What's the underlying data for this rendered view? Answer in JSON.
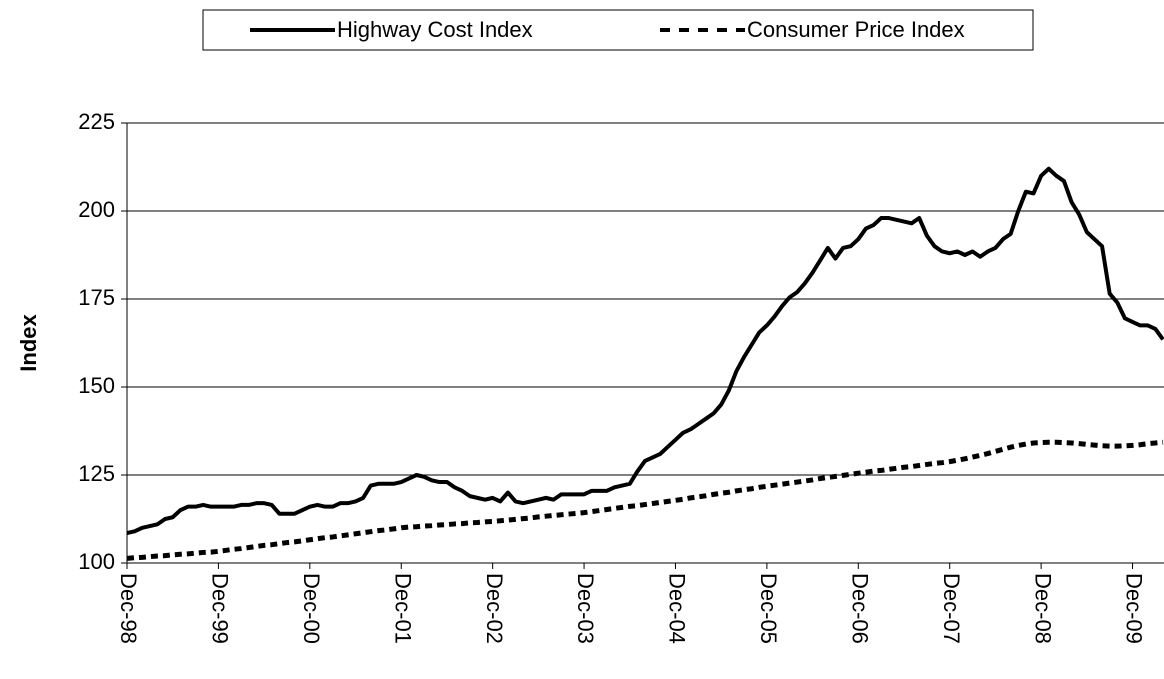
{
  "chart_data": {
    "type": "line",
    "y_label": "Index",
    "ylim": [
      100,
      225
    ],
    "yticks": [
      100,
      125,
      150,
      175,
      200,
      225
    ],
    "grid": true,
    "legend": "top",
    "categories": [
      "Dec-98",
      null,
      null,
      null,
      null,
      null,
      null,
      null,
      null,
      null,
      null,
      null,
      "Dec-99",
      null,
      null,
      null,
      null,
      null,
      null,
      null,
      null,
      null,
      null,
      null,
      "Dec-00",
      null,
      null,
      null,
      null,
      null,
      null,
      null,
      null,
      null,
      null,
      null,
      "Dec-01",
      null,
      null,
      null,
      null,
      null,
      null,
      null,
      null,
      null,
      null,
      null,
      "Dec-02",
      null,
      null,
      null,
      null,
      null,
      null,
      null,
      null,
      null,
      null,
      null,
      "Dec-03",
      null,
      null,
      null,
      null,
      null,
      null,
      null,
      null,
      null,
      null,
      null,
      "Dec-04",
      null,
      null,
      null,
      null,
      null,
      null,
      null,
      null,
      null,
      null,
      null,
      "Dec-05",
      null,
      null,
      null,
      null,
      null,
      null,
      null,
      null,
      null,
      null,
      null,
      "Dec-06",
      null,
      null,
      null,
      null,
      null,
      null,
      null,
      null,
      null,
      null,
      null,
      "Dec-07",
      null,
      null,
      null,
      null,
      null,
      null,
      null,
      null,
      null,
      null,
      null,
      "Dec-08",
      null,
      null,
      null,
      null,
      null,
      null,
      null,
      null,
      null,
      null,
      null,
      "Dec-09",
      null,
      null,
      null,
      null
    ],
    "series": [
      {
        "name": "Highway Cost Index",
        "color": "#000000",
        "dashed": false,
        "values": [
          108.5,
          109,
          110,
          110.5,
          111,
          112.5,
          113,
          115,
          116,
          116,
          116.5,
          116,
          116,
          116,
          116,
          116.5,
          116.5,
          117,
          117,
          116.5,
          114,
          114,
          114,
          115,
          116,
          116.5,
          116,
          116,
          117,
          117,
          117.5,
          118.5,
          122,
          122.5,
          122.5,
          122.5,
          123,
          124,
          125,
          124.5,
          123.5,
          123,
          123,
          121.5,
          120.5,
          119,
          118.5,
          118,
          118.5,
          117.5,
          120,
          117.5,
          117,
          117.5,
          118,
          118.5,
          118,
          119.5,
          119.5,
          119.5,
          119.5,
          120.5,
          120.5,
          120.5,
          121.5,
          122,
          122.5,
          126,
          129,
          130,
          131,
          133,
          135,
          137,
          138,
          139.5,
          141,
          142.5,
          145,
          149,
          154.5,
          158.5,
          162,
          165.5,
          167.5,
          170,
          173,
          175.5,
          177,
          179.5,
          182.5,
          186,
          189.5,
          186.5,
          189.5,
          190,
          192,
          195,
          196,
          198,
          198,
          197.5,
          197,
          196.5,
          198,
          193,
          190,
          188.5,
          188,
          188.5,
          187.5,
          188.5,
          187,
          188.5,
          189.5,
          192,
          193.5,
          200,
          205.5,
          205,
          210,
          212,
          210,
          208.5,
          202.5,
          199,
          194,
          192,
          190,
          176.5,
          174,
          169.5,
          168.5,
          167.5,
          167.5,
          166.5,
          163.5
        ]
      },
      {
        "name": "Consumer Price Index",
        "color": "#000000",
        "dashed": true,
        "values": [
          101.3,
          101.5,
          101.6,
          101.8,
          102.0,
          102.1,
          102.3,
          102.5,
          102.6,
          102.8,
          103.0,
          103.1,
          103.3,
          103.6,
          103.9,
          104.1,
          104.4,
          104.7,
          105.0,
          105.2,
          105.5,
          105.8,
          106.0,
          106.3,
          106.6,
          106.9,
          107.2,
          107.4,
          107.7,
          108.0,
          108.3,
          108.6,
          108.9,
          109.2,
          109.4,
          109.7,
          110.0,
          110.2,
          110.3,
          110.5,
          110.6,
          110.8,
          110.9,
          111.1,
          111.2,
          111.4,
          111.5,
          111.7,
          111.8,
          112.0,
          112.2,
          112.4,
          112.6,
          112.8,
          113.1,
          113.3,
          113.5,
          113.7,
          113.9,
          114.1,
          114.3,
          114.6,
          114.9,
          115.2,
          115.5,
          115.8,
          116.1,
          116.3,
          116.6,
          116.9,
          117.2,
          117.5,
          117.8,
          118.1,
          118.5,
          118.8,
          119.1,
          119.5,
          119.8,
          120.1,
          120.5,
          120.8,
          121.1,
          121.5,
          121.8,
          122.1,
          122.4,
          122.7,
          123.0,
          123.3,
          123.6,
          124.0,
          124.3,
          124.6,
          124.9,
          125.2,
          125.5,
          125.8,
          126.1,
          126.3,
          126.6,
          126.9,
          127.2,
          127.4,
          127.7,
          128.0,
          128.3,
          128.5,
          128.8,
          129.2,
          129.6,
          130.1,
          130.6,
          131.1,
          131.7,
          132.3,
          132.9,
          133.4,
          133.8,
          134.1,
          134.2,
          134.3,
          134.3,
          134.2,
          134.1,
          133.9,
          133.7,
          133.5,
          133.3,
          133.2,
          133.2,
          133.3,
          133.4,
          133.6,
          133.9,
          134.1,
          134.3
        ]
      }
    ]
  }
}
